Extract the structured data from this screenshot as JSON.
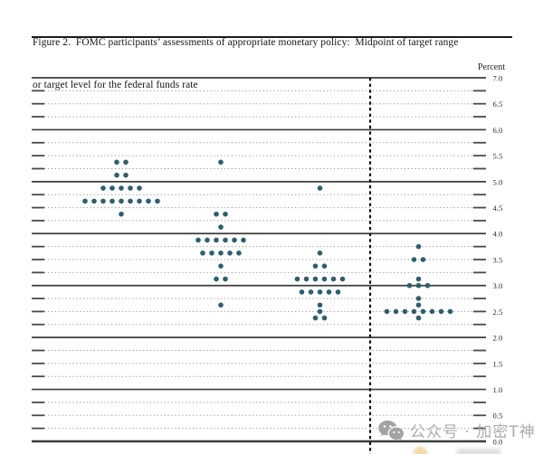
{
  "header": {
    "title_line1": "Figure 2.  FOMC participants’ assessments of appropriate monetary policy:  Midpoint of target range",
    "title_line2": "or target level for the federal funds rate"
  },
  "axis": {
    "unit_label": "Percent",
    "y_tick_labels": [
      "7.0",
      "6.5",
      "6.0",
      "5.5",
      "5.0",
      "4.5",
      "4.0",
      "3.5",
      "3.0",
      "2.5",
      "2.0",
      "1.5",
      "1.0",
      "0.5",
      "0.0"
    ]
  },
  "watermark": {
    "icon": "wechat-icon",
    "text": "公众号 · 加密T神",
    "color": "#ababab"
  },
  "chart_data": {
    "type": "scatter",
    "title": "FOMC participants' assessments of appropriate monetary policy: Midpoint of target range or target level for the federal funds rate",
    "ylabel": "Percent",
    "ylim": [
      0.0,
      7.0
    ],
    "gridline_step": 0.25,
    "label_step": 0.5,
    "grid": "solid lines at whole percents, dotted lines at quarter percents with dark end ticks",
    "legend_position": "none",
    "dot_color": "#2e5f6d",
    "separator": "vertical dashed line before last column",
    "columns": [
      {
        "id": "column-1",
        "dots": [
          {
            "rate": 5.375,
            "count": 2
          },
          {
            "rate": 5.125,
            "count": 2
          },
          {
            "rate": 4.875,
            "count": 5
          },
          {
            "rate": 4.625,
            "count": 9
          },
          {
            "rate": 4.375,
            "count": 1
          }
        ]
      },
      {
        "id": "column-2",
        "dots": [
          {
            "rate": 5.375,
            "count": 1
          },
          {
            "rate": 4.375,
            "count": 2
          },
          {
            "rate": 4.125,
            "count": 1
          },
          {
            "rate": 3.875,
            "count": 6
          },
          {
            "rate": 3.625,
            "count": 5
          },
          {
            "rate": 3.375,
            "count": 1
          },
          {
            "rate": 3.125,
            "count": 2
          },
          {
            "rate": 2.625,
            "count": 1
          }
        ]
      },
      {
        "id": "column-3",
        "dots": [
          {
            "rate": 4.875,
            "count": 1
          },
          {
            "rate": 3.625,
            "count": 1
          },
          {
            "rate": 3.375,
            "count": 2
          },
          {
            "rate": 3.125,
            "count": 6
          },
          {
            "rate": 2.875,
            "count": 5
          },
          {
            "rate": 2.625,
            "count": 1
          },
          {
            "rate": 2.5,
            "count": 1
          },
          {
            "rate": 2.375,
            "count": 2
          }
        ]
      },
      {
        "id": "longer-run",
        "separator_before": true,
        "dots": [
          {
            "rate": 3.75,
            "count": 1
          },
          {
            "rate": 3.5,
            "count": 2
          },
          {
            "rate": 3.125,
            "count": 1
          },
          {
            "rate": 3.0,
            "count": 3
          },
          {
            "rate": 2.75,
            "count": 1
          },
          {
            "rate": 2.625,
            "count": 1
          },
          {
            "rate": 2.5,
            "count": 8
          },
          {
            "rate": 2.375,
            "count": 1
          }
        ]
      }
    ]
  }
}
